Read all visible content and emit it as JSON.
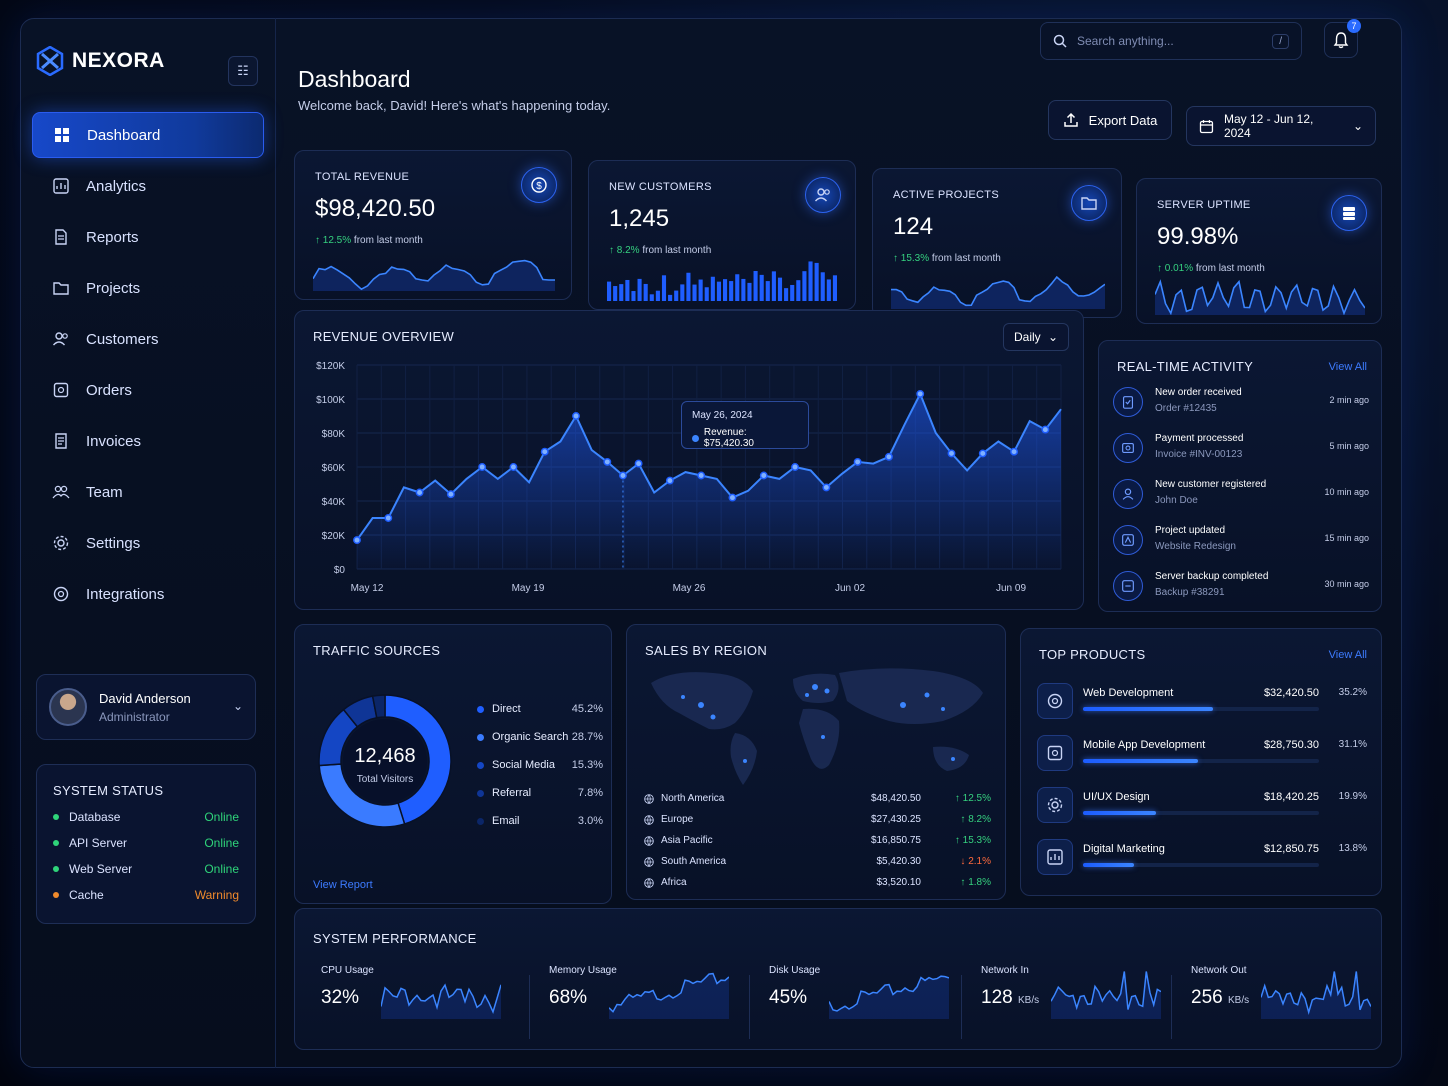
{
  "brand": {
    "name": "NEXORA"
  },
  "nav": [
    {
      "label": "Dashboard",
      "icon": "grid-icon",
      "active": true
    },
    {
      "label": "Analytics",
      "icon": "analytics-icon"
    },
    {
      "label": "Reports",
      "icon": "document-icon"
    },
    {
      "label": "Projects",
      "icon": "folder-icon"
    },
    {
      "label": "Customers",
      "icon": "users-icon"
    },
    {
      "label": "Orders",
      "icon": "box-icon"
    },
    {
      "label": "Invoices",
      "icon": "invoice-icon"
    },
    {
      "label": "Team",
      "icon": "team-icon"
    },
    {
      "label": "Settings",
      "icon": "gear-icon"
    },
    {
      "label": "Integrations",
      "icon": "integrations-icon"
    }
  ],
  "user": {
    "name": "David Anderson",
    "role": "Administrator"
  },
  "system_status": {
    "title": "SYSTEM STATUS",
    "items": [
      {
        "name": "Database",
        "status": "Online",
        "color": "#2fd47a"
      },
      {
        "name": "API Server",
        "status": "Online",
        "color": "#2fd47a"
      },
      {
        "name": "Web Server",
        "status": "Online",
        "color": "#2fd47a"
      },
      {
        "name": "Cache",
        "status": "Warning",
        "color": "#f08a2c"
      }
    ]
  },
  "header": {
    "search_placeholder": "Search anything...",
    "search_shortcut": "/",
    "notifications": "7",
    "title": "Dashboard",
    "subtitle": "Welcome back, David! Here's what's happening today.",
    "export_label": "Export Data",
    "date_range": "May 12 - Jun 12, 2024"
  },
  "kpis": [
    {
      "label": "TOTAL REVENUE",
      "value": "$98,420.50",
      "delta": "12.5%",
      "delta_text": "from last month",
      "icon": "dollar-icon"
    },
    {
      "label": "NEW CUSTOMERS",
      "value": "1,245",
      "delta": "8.2%",
      "delta_text": "from last month",
      "icon": "users-icon"
    },
    {
      "label": "ACTIVE PROJECTS",
      "value": "124",
      "delta": "15.3%",
      "delta_text": "from last month",
      "icon": "folder-icon"
    },
    {
      "label": "SERVER UPTIME",
      "value": "99.98%",
      "delta": "0.01%",
      "delta_text": "from last month",
      "icon": "server-icon"
    }
  ],
  "revenue_overview": {
    "title": "REVENUE OVERVIEW",
    "range_label": "Daily",
    "tooltip_date": "May 26, 2024",
    "tooltip_value": "Revenue: $75,420.30"
  },
  "chart_data": {
    "type": "line",
    "title": "REVENUE OVERVIEW",
    "ylim": [
      0,
      120000
    ],
    "y_ticks": [
      "$0",
      "$20K",
      "$40K",
      "$60K",
      "$80K",
      "$100K",
      "$120K"
    ],
    "x_ticks": [
      "May 12",
      "May 19",
      "May 26",
      "Jun 02",
      "Jun 09"
    ],
    "values": [
      17000,
      30000,
      30000,
      48000,
      45000,
      52000,
      44000,
      53000,
      60000,
      53000,
      60000,
      51000,
      69000,
      75000,
      90000,
      70000,
      63000,
      55000,
      62000,
      45000,
      52000,
      57000,
      55000,
      53000,
      42000,
      46000,
      55000,
      53000,
      60000,
      58000,
      48000,
      56000,
      63000,
      62000,
      66000,
      85000,
      103000,
      80000,
      68000,
      58000,
      68000,
      75000,
      69000,
      87000,
      82000,
      94000
    ]
  },
  "activity": {
    "title": "REAL-TIME ACTIVITY",
    "view_all": "View All",
    "items": [
      {
        "title": "New order received",
        "sub": "Order #12435",
        "time": "2 min ago",
        "icon": "clipboard-icon"
      },
      {
        "title": "Payment processed",
        "sub": "Invoice #INV-00123",
        "time": "5 min ago",
        "icon": "payment-icon"
      },
      {
        "title": "New customer registered",
        "sub": "John Doe",
        "time": "10 min ago",
        "icon": "user-icon"
      },
      {
        "title": "Project updated",
        "sub": "Website Redesign",
        "time": "15 min ago",
        "icon": "project-icon"
      },
      {
        "title": "Server backup completed",
        "sub": "Backup #38291",
        "time": "30 min ago",
        "icon": "backup-icon"
      }
    ]
  },
  "traffic": {
    "title": "TRAFFIC SOURCES",
    "total": "12,468",
    "total_label": "Total Visitors",
    "link": "View Report",
    "sources": [
      {
        "name": "Direct",
        "pct": "45.2%",
        "share": 45.2,
        "color": "#1f5eff"
      },
      {
        "name": "Organic Search",
        "pct": "28.7%",
        "share": 28.7,
        "color": "#3a7bff"
      },
      {
        "name": "Social Media",
        "pct": "15.3%",
        "share": 15.3,
        "color": "#1446c4"
      },
      {
        "name": "Referral",
        "pct": "7.8%",
        "share": 7.8,
        "color": "#0f3596"
      },
      {
        "name": "Email",
        "pct": "3.0%",
        "share": 3.0,
        "color": "#0b2668"
      }
    ]
  },
  "regions": {
    "title": "SALES BY REGION",
    "items": [
      {
        "name": "North America",
        "value": "$48,420.50",
        "delta": "↑ 12.5%",
        "color": "#35d07f",
        "icon": "globe-icon"
      },
      {
        "name": "Europe",
        "value": "$27,430.25",
        "delta": "↑ 8.2%",
        "color": "#35d07f",
        "icon": "globe-icon"
      },
      {
        "name": "Asia Pacific",
        "value": "$16,850.75",
        "delta": "↑ 15.3%",
        "color": "#35d07f",
        "icon": "globe-icon"
      },
      {
        "name": "South America",
        "value": "$5,420.30",
        "delta": "↓ 2.1%",
        "color": "#ff6a3d",
        "icon": "globe-icon"
      },
      {
        "name": "Africa",
        "value": "$3,520.10",
        "delta": "↑ 1.8%",
        "color": "#35d07f",
        "icon": "globe-icon"
      }
    ]
  },
  "products": {
    "title": "TOP PRODUCTS",
    "view_all": "View All",
    "items": [
      {
        "name": "Web Development",
        "value": "$32,420.50",
        "pct": "35.2%",
        "share": 0.352
      },
      {
        "name": "Mobile App Development",
        "value": "$28,750.30",
        "pct": "31.1%",
        "share": 0.311
      },
      {
        "name": "UI/UX Design",
        "value": "$18,420.25",
        "pct": "19.9%",
        "share": 0.199
      },
      {
        "name": "Digital Marketing",
        "value": "$12,850.75",
        "pct": "13.8%",
        "share": 0.138
      }
    ]
  },
  "performance": {
    "title": "SYSTEM PERFORMANCE",
    "items": [
      {
        "label": "CPU Usage",
        "value": "32%",
        "unit": ""
      },
      {
        "label": "Memory Usage",
        "value": "68%",
        "unit": ""
      },
      {
        "label": "Disk Usage",
        "value": "45%",
        "unit": ""
      },
      {
        "label": "Network In",
        "value": "128",
        "unit": "KB/s"
      },
      {
        "label": "Network Out",
        "value": "256",
        "unit": "KB/s"
      }
    ]
  }
}
